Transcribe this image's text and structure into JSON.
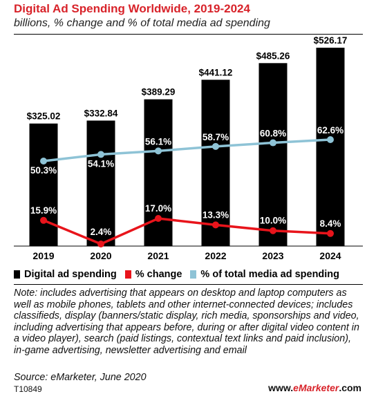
{
  "title": "Digital Ad Spending Worldwide, 2019-2024",
  "subtitle": "billions, % change and % of total media ad spending",
  "note": "Note: includes advertising that appears on desktop and laptop computers as well as mobile phones, tablets and other internet-connected devices; includes classifieds, display (banners/static display, rich media, sponsorships and video, including advertising that appears before, during or after digital video content in a video player), search (paid listings, contextual text links and paid inclusion), in-game advertising, newsletter advertising and email",
  "source": "Source: eMarketer, June 2020",
  "code": "T10849",
  "brand": {
    "prefix": "www.",
    "accent": "eMarketer",
    "suffix": ".com"
  },
  "colors": {
    "bars": "#000000",
    "change": "#e8141b",
    "share": "#8ec3d6",
    "title": "#d8232a"
  },
  "chart_data": {
    "type": "bar",
    "categories": [
      "2019",
      "2020",
      "2021",
      "2022",
      "2023",
      "2024"
    ],
    "series": [
      {
        "name": "Digital ad spending",
        "type": "bar",
        "values": [
          325.02,
          332.84,
          389.29,
          441.12,
          485.26,
          526.17
        ],
        "labels": [
          "$325.02",
          "$332.84",
          "$389.29",
          "$441.12",
          "$485.26",
          "$526.17"
        ]
      },
      {
        "name": "% change",
        "type": "line",
        "values": [
          15.9,
          2.4,
          17.0,
          13.3,
          10.0,
          8.4
        ],
        "labels": [
          "15.9%",
          "2.4%",
          "17.0%",
          "13.3%",
          "10.0%",
          "8.4%"
        ]
      },
      {
        "name": "% of total media ad spending",
        "type": "line",
        "values": [
          50.3,
          54.1,
          56.1,
          58.7,
          60.8,
          62.6
        ],
        "labels": [
          "50.3%",
          "54.1%",
          "56.1%",
          "58.7%",
          "60.8%",
          "62.6%"
        ]
      }
    ],
    "legend_position": "bottom",
    "grid": false
  }
}
